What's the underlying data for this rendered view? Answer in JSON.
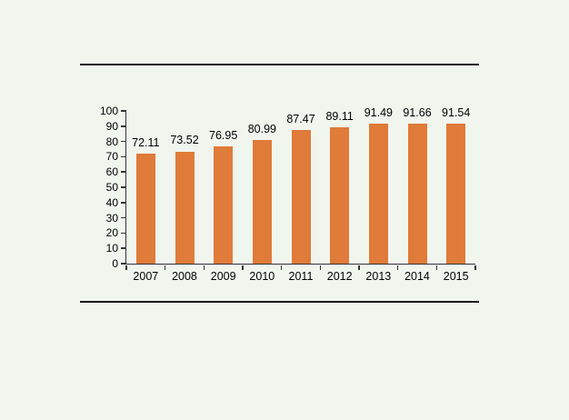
{
  "page": {
    "background_color": "#F0F5EE",
    "divider_color": "#1b1b1b"
  },
  "chart_data": {
    "type": "bar",
    "title": "",
    "xlabel": "",
    "ylabel": "",
    "categories": [
      "2007",
      "2008",
      "2009",
      "2010",
      "2011",
      "2012",
      "2013",
      "2014",
      "2015"
    ],
    "values": [
      72.11,
      73.52,
      76.95,
      80.99,
      87.47,
      89.11,
      91.49,
      91.66,
      91.54
    ],
    "data_labels": [
      "72.11",
      "73.52",
      "76.95",
      "80.99",
      "87.47",
      "89.11",
      "91.49",
      "91.66",
      "91.54"
    ],
    "ylim": [
      0,
      100
    ],
    "ytick_step": 10,
    "ytick_labels": [
      "0",
      "10",
      "20",
      "30",
      "40",
      "50",
      "60",
      "70",
      "80",
      "90",
      "100"
    ],
    "grid": false,
    "legend": "none",
    "bar_color": "#E07B39",
    "axis_color": "#333333",
    "text_color": "#000000"
  }
}
